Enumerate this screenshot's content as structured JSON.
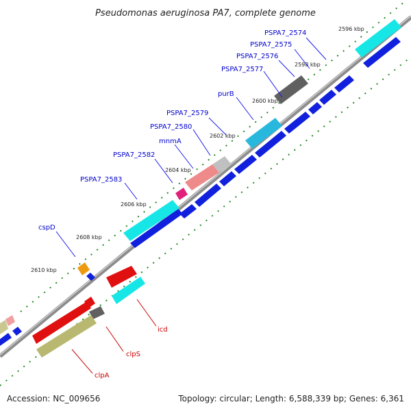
{
  "title": "Pseudomonas aeruginosa PA7, complete genome",
  "footer": {
    "accession": "Accession: NC_009656",
    "summary": "Topology: circular; Length: 6,588,339 bp; Genes: 6,361"
  },
  "colors": {
    "label_forward": "#0000cc",
    "label_reverse": "#cc0000",
    "backbone": "#777777",
    "ticks": "#228822"
  },
  "tick_labels": [
    "2596 kbp",
    "2598 kbp",
    "2600 kbp",
    "2602 kbp",
    "2604 kbp",
    "2606 kbp",
    "2608 kbp",
    "2610 kbp"
  ],
  "genes_forward": [
    "PSPA7_2574",
    "PSPA7_2575",
    "PSPA7_2576",
    "PSPA7_2577",
    "purB",
    "PSPA7_2579",
    "PSPA7_2580",
    "mnmA",
    "PSPA7_2582",
    "PSPA7_2583",
    "cspD"
  ],
  "genes_reverse": [
    "icd",
    "clpS",
    "clpA"
  ]
}
